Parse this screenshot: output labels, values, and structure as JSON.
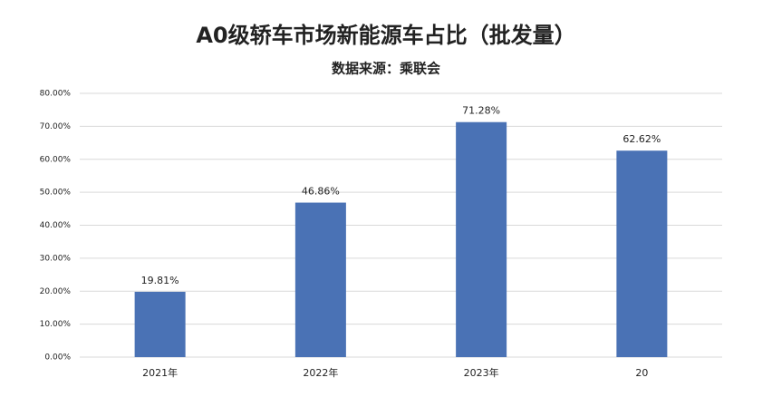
{
  "chart_data": {
    "type": "bar",
    "title": "A0级轿车市场新能源车占比（批发量）",
    "subtitle": "数据来源：乘联会",
    "categories": [
      "2021年",
      "2022年",
      "2023年",
      "20"
    ],
    "values": [
      19.81,
      46.86,
      71.28,
      62.62
    ],
    "value_labels": [
      "19.81%",
      "46.86%",
      "71.28%",
      "62.62%"
    ],
    "color": "#4a72b5",
    "ylim": [
      0,
      80
    ],
    "yticks": [
      {
        "value": 0,
        "label": "0.00%"
      },
      {
        "value": 10,
        "label": "10.00%"
      },
      {
        "value": 20,
        "label": "20.00%"
      },
      {
        "value": 30,
        "label": "30.00%"
      },
      {
        "value": 40,
        "label": "40.00%"
      },
      {
        "value": 50,
        "label": "50.00%"
      },
      {
        "value": 60,
        "label": "60.00%"
      },
      {
        "value": 70,
        "label": "70.00%"
      },
      {
        "value": 80,
        "label": "80.00%"
      }
    ],
    "grid": true
  }
}
